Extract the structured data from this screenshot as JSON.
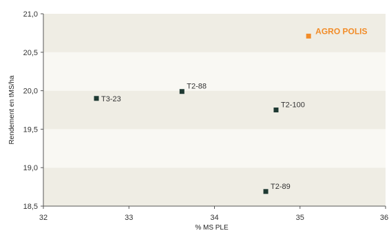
{
  "colors": {
    "band_dark": "#efede4",
    "band_light": "#f9f8f3",
    "axis": "#555555",
    "point": "#1f3a33",
    "highlight": "#f28c28"
  },
  "chart_data": {
    "type": "scatter",
    "title": "",
    "xlabel": "% MS PLE",
    "ylabel": "Rendement en tMS/ha",
    "xlim": [
      32,
      36
    ],
    "ylim": [
      18.5,
      21.0
    ],
    "xticks": [
      "32",
      "33",
      "34",
      "35",
      "36"
    ],
    "xtick_values": [
      32,
      33,
      34,
      35,
      36
    ],
    "yticks": [
      "18,5",
      "19,0",
      "19,5",
      "20,0",
      "20,5",
      "21,0"
    ],
    "ytick_values": [
      18.5,
      19.0,
      19.5,
      20.0,
      20.5,
      21.0
    ],
    "grid": "alternating horizontal bands",
    "points": [
      {
        "label": "T3-23",
        "x": 32.62,
        "y": 19.9,
        "highlight": false
      },
      {
        "label": "T2-88",
        "x": 33.62,
        "y": 19.99,
        "highlight": false
      },
      {
        "label": "T2-100",
        "x": 34.72,
        "y": 19.75,
        "highlight": false
      },
      {
        "label": "T2-89",
        "x": 34.6,
        "y": 18.69,
        "highlight": false
      },
      {
        "label": "AGRO POLIS",
        "x": 35.1,
        "y": 20.71,
        "highlight": true
      }
    ]
  }
}
